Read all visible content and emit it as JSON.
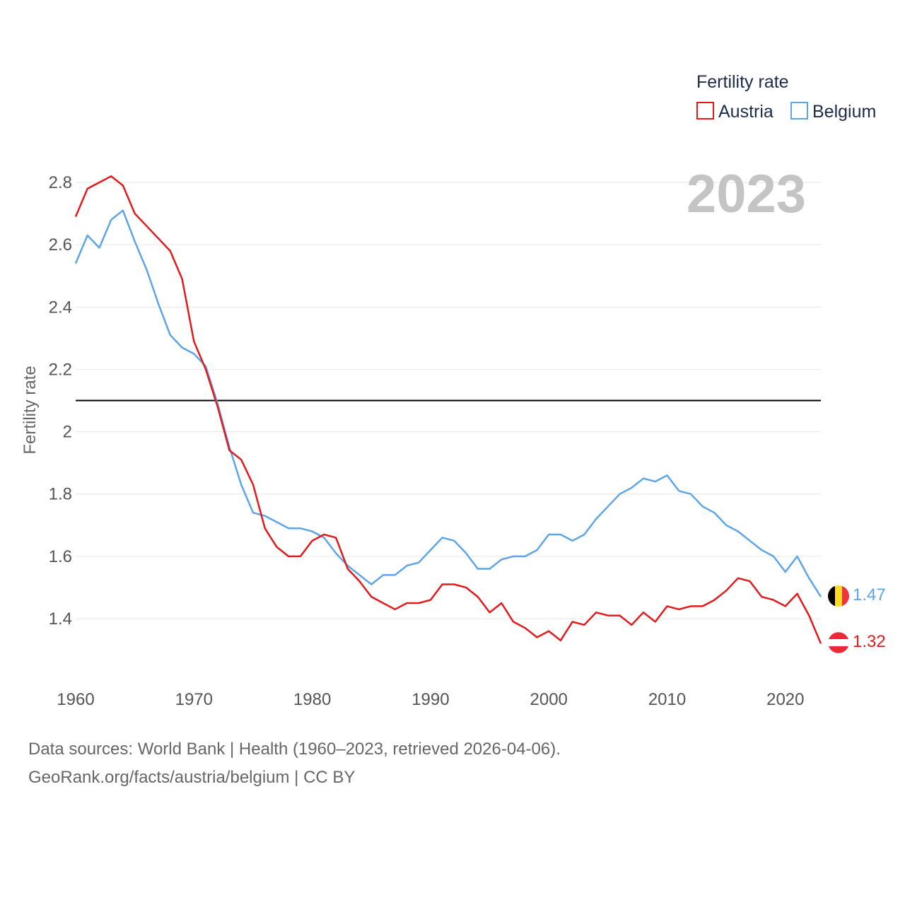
{
  "colors": {
    "austria": "#e31a1c",
    "belgium": "#5da5e8",
    "reference": "#000000"
  },
  "legend": {
    "title": "Fertility rate"
  },
  "year_label": "2023",
  "footer": {
    "line1": "Data sources: World Bank | Health (1960–2023, retrieved 2026-04-06).",
    "line2": "GeoRank.org/facts/austria/belgium | CC BY"
  },
  "chart_data": {
    "type": "line",
    "ylabel": "Fertility rate",
    "xlabel": "",
    "xlim": [
      1960,
      2023
    ],
    "ylim": [
      1.2,
      2.9
    ],
    "xticks": [
      1960,
      1970,
      1980,
      1990,
      2000,
      2010,
      2020
    ],
    "yticks": [
      1.4,
      1.6,
      1.8,
      2,
      2.2,
      2.4,
      2.6,
      2.8
    ],
    "ytick_labels": [
      "1.4",
      "1.6",
      "1.8",
      "2",
      "2.2",
      "2.4",
      "2.6",
      "2.8"
    ],
    "reference_line": 2.1,
    "x": [
      1960,
      1961,
      1962,
      1963,
      1964,
      1965,
      1966,
      1967,
      1968,
      1969,
      1970,
      1971,
      1972,
      1973,
      1974,
      1975,
      1976,
      1977,
      1978,
      1979,
      1980,
      1981,
      1982,
      1983,
      1984,
      1985,
      1986,
      1987,
      1988,
      1989,
      1990,
      1991,
      1992,
      1993,
      1994,
      1995,
      1996,
      1997,
      1998,
      1999,
      2000,
      2001,
      2002,
      2003,
      2004,
      2005,
      2006,
      2007,
      2008,
      2009,
      2010,
      2011,
      2012,
      2013,
      2014,
      2015,
      2016,
      2017,
      2018,
      2019,
      2020,
      2021,
      2022,
      2023
    ],
    "series": [
      {
        "name": "Austria",
        "color_key": "austria",
        "end_label": "1.32",
        "values": [
          2.69,
          2.78,
          2.8,
          2.82,
          2.79,
          2.7,
          2.66,
          2.62,
          2.58,
          2.49,
          2.29,
          2.2,
          2.08,
          1.94,
          1.91,
          1.83,
          1.69,
          1.63,
          1.6,
          1.6,
          1.65,
          1.67,
          1.66,
          1.56,
          1.52,
          1.47,
          1.45,
          1.43,
          1.45,
          1.45,
          1.46,
          1.51,
          1.51,
          1.5,
          1.47,
          1.42,
          1.45,
          1.39,
          1.37,
          1.34,
          1.36,
          1.33,
          1.39,
          1.38,
          1.42,
          1.41,
          1.41,
          1.38,
          1.42,
          1.39,
          1.44,
          1.43,
          1.44,
          1.44,
          1.46,
          1.49,
          1.53,
          1.52,
          1.47,
          1.46,
          1.44,
          1.48,
          1.41,
          1.32
        ]
      },
      {
        "name": "Belgium",
        "color_key": "belgium",
        "end_label": "1.47",
        "values": [
          2.54,
          2.63,
          2.59,
          2.68,
          2.71,
          2.61,
          2.52,
          2.41,
          2.31,
          2.27,
          2.25,
          2.21,
          2.09,
          1.95,
          1.83,
          1.74,
          1.73,
          1.71,
          1.69,
          1.69,
          1.68,
          1.66,
          1.61,
          1.57,
          1.54,
          1.51,
          1.54,
          1.54,
          1.57,
          1.58,
          1.62,
          1.66,
          1.65,
          1.61,
          1.56,
          1.56,
          1.59,
          1.6,
          1.6,
          1.62,
          1.67,
          1.67,
          1.65,
          1.67,
          1.72,
          1.76,
          1.8,
          1.82,
          1.85,
          1.84,
          1.86,
          1.81,
          1.8,
          1.76,
          1.74,
          1.7,
          1.68,
          1.65,
          1.62,
          1.6,
          1.55,
          1.6,
          1.53,
          1.47
        ]
      }
    ]
  }
}
